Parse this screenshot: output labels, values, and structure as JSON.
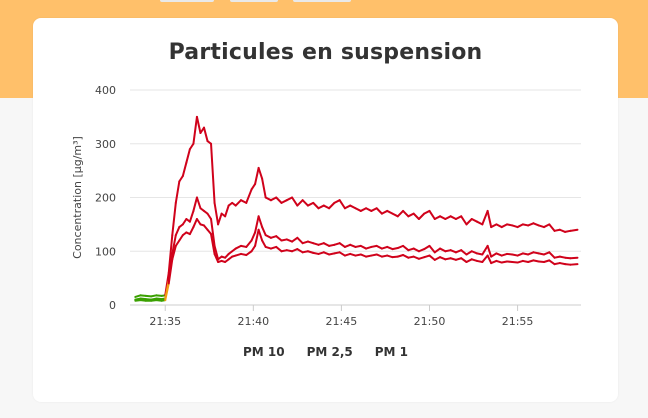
{
  "chart_data": {
    "type": "line",
    "title": "Particules en suspension",
    "ylabel": "Concentration [µg/m³]",
    "xlabel": "",
    "ylim": [
      0,
      400
    ],
    "y_ticks": [
      0,
      100,
      200,
      300,
      400
    ],
    "x_ticks": [
      {
        "t": 35,
        "label": "21:35"
      },
      {
        "t": 40,
        "label": "21:40"
      },
      {
        "t": 45,
        "label": "21:45"
      },
      {
        "t": 50,
        "label": "21:50"
      },
      {
        "t": 55,
        "label": "21:55"
      }
    ],
    "x_unit": "minutes after 21:00",
    "grid": true,
    "legend_position": "bottom",
    "colors": {
      "high": "#d0021b",
      "low_green": "#3aa000",
      "low_yellow": "#f0d000",
      "mid_orange": "#f39c12"
    },
    "series": [
      {
        "name": "PM 10",
        "points": [
          [
            33.3,
            15
          ],
          [
            33.6,
            18
          ],
          [
            33.9,
            17
          ],
          [
            34.2,
            16
          ],
          [
            34.5,
            18
          ],
          [
            34.8,
            17
          ],
          [
            35.0,
            18
          ],
          [
            35.2,
            60
          ],
          [
            35.4,
            130
          ],
          [
            35.6,
            190
          ],
          [
            35.8,
            230
          ],
          [
            36.0,
            240
          ],
          [
            36.2,
            265
          ],
          [
            36.4,
            290
          ],
          [
            36.6,
            300
          ],
          [
            36.8,
            350
          ],
          [
            37.0,
            320
          ],
          [
            37.2,
            330
          ],
          [
            37.4,
            305
          ],
          [
            37.6,
            300
          ],
          [
            37.8,
            190
          ],
          [
            38.0,
            150
          ],
          [
            38.2,
            170
          ],
          [
            38.4,
            165
          ],
          [
            38.6,
            185
          ],
          [
            38.8,
            190
          ],
          [
            39.0,
            185
          ],
          [
            39.3,
            195
          ],
          [
            39.6,
            190
          ],
          [
            39.9,
            215
          ],
          [
            40.1,
            225
          ],
          [
            40.3,
            255
          ],
          [
            40.5,
            235
          ],
          [
            40.7,
            200
          ],
          [
            41.0,
            195
          ],
          [
            41.3,
            200
          ],
          [
            41.6,
            190
          ],
          [
            41.9,
            195
          ],
          [
            42.2,
            200
          ],
          [
            42.5,
            185
          ],
          [
            42.8,
            195
          ],
          [
            43.1,
            185
          ],
          [
            43.4,
            190
          ],
          [
            43.7,
            180
          ],
          [
            44.0,
            185
          ],
          [
            44.3,
            180
          ],
          [
            44.6,
            190
          ],
          [
            44.9,
            195
          ],
          [
            45.2,
            180
          ],
          [
            45.5,
            185
          ],
          [
            45.8,
            180
          ],
          [
            46.1,
            175
          ],
          [
            46.4,
            180
          ],
          [
            46.7,
            175
          ],
          [
            47.0,
            180
          ],
          [
            47.3,
            170
          ],
          [
            47.6,
            175
          ],
          [
            47.9,
            170
          ],
          [
            48.2,
            165
          ],
          [
            48.5,
            175
          ],
          [
            48.8,
            165
          ],
          [
            49.1,
            170
          ],
          [
            49.4,
            160
          ],
          [
            49.7,
            170
          ],
          [
            50.0,
            175
          ],
          [
            50.3,
            160
          ],
          [
            50.6,
            165
          ],
          [
            50.9,
            160
          ],
          [
            51.2,
            165
          ],
          [
            51.5,
            160
          ],
          [
            51.8,
            165
          ],
          [
            52.1,
            150
          ],
          [
            52.4,
            160
          ],
          [
            52.7,
            155
          ],
          [
            53.0,
            150
          ],
          [
            53.3,
            175
          ],
          [
            53.5,
            145
          ],
          [
            53.8,
            150
          ],
          [
            54.1,
            145
          ],
          [
            54.4,
            150
          ],
          [
            54.7,
            148
          ],
          [
            55.0,
            145
          ],
          [
            55.3,
            150
          ],
          [
            55.6,
            148
          ],
          [
            55.9,
            152
          ],
          [
            56.2,
            148
          ],
          [
            56.5,
            145
          ],
          [
            56.8,
            150
          ],
          [
            57.1,
            138
          ],
          [
            57.4,
            140
          ],
          [
            57.7,
            136
          ],
          [
            58.0,
            138
          ],
          [
            58.4,
            140
          ]
        ]
      },
      {
        "name": "PM 2,5",
        "points": [
          [
            33.3,
            10
          ],
          [
            33.6,
            12
          ],
          [
            33.9,
            11
          ],
          [
            34.2,
            10
          ],
          [
            34.5,
            12
          ],
          [
            34.8,
            11
          ],
          [
            35.0,
            12
          ],
          [
            35.2,
            45
          ],
          [
            35.4,
            95
          ],
          [
            35.6,
            130
          ],
          [
            35.8,
            145
          ],
          [
            36.0,
            150
          ],
          [
            36.2,
            160
          ],
          [
            36.4,
            155
          ],
          [
            36.6,
            175
          ],
          [
            36.8,
            200
          ],
          [
            37.0,
            180
          ],
          [
            37.2,
            175
          ],
          [
            37.4,
            170
          ],
          [
            37.6,
            160
          ],
          [
            37.8,
            110
          ],
          [
            38.0,
            85
          ],
          [
            38.2,
            90
          ],
          [
            38.4,
            88
          ],
          [
            38.6,
            95
          ],
          [
            38.8,
            100
          ],
          [
            39.0,
            105
          ],
          [
            39.3,
            110
          ],
          [
            39.6,
            108
          ],
          [
            39.9,
            120
          ],
          [
            40.1,
            135
          ],
          [
            40.3,
            165
          ],
          [
            40.5,
            145
          ],
          [
            40.7,
            130
          ],
          [
            41.0,
            125
          ],
          [
            41.3,
            128
          ],
          [
            41.6,
            120
          ],
          [
            41.9,
            122
          ],
          [
            42.2,
            118
          ],
          [
            42.5,
            125
          ],
          [
            42.8,
            115
          ],
          [
            43.1,
            118
          ],
          [
            43.4,
            115
          ],
          [
            43.7,
            112
          ],
          [
            44.0,
            115
          ],
          [
            44.3,
            110
          ],
          [
            44.6,
            112
          ],
          [
            44.9,
            115
          ],
          [
            45.2,
            108
          ],
          [
            45.5,
            112
          ],
          [
            45.8,
            108
          ],
          [
            46.1,
            110
          ],
          [
            46.4,
            105
          ],
          [
            46.7,
            108
          ],
          [
            47.0,
            110
          ],
          [
            47.3,
            105
          ],
          [
            47.6,
            108
          ],
          [
            47.9,
            104
          ],
          [
            48.2,
            106
          ],
          [
            48.5,
            110
          ],
          [
            48.8,
            102
          ],
          [
            49.1,
            105
          ],
          [
            49.4,
            100
          ],
          [
            49.7,
            104
          ],
          [
            50.0,
            110
          ],
          [
            50.3,
            98
          ],
          [
            50.6,
            105
          ],
          [
            50.9,
            100
          ],
          [
            51.2,
            102
          ],
          [
            51.5,
            98
          ],
          [
            51.8,
            102
          ],
          [
            52.1,
            94
          ],
          [
            52.4,
            100
          ],
          [
            52.7,
            96
          ],
          [
            53.0,
            94
          ],
          [
            53.3,
            110
          ],
          [
            53.5,
            90
          ],
          [
            53.8,
            96
          ],
          [
            54.1,
            92
          ],
          [
            54.4,
            95
          ],
          [
            54.7,
            94
          ],
          [
            55.0,
            92
          ],
          [
            55.3,
            96
          ],
          [
            55.6,
            94
          ],
          [
            55.9,
            98
          ],
          [
            56.2,
            96
          ],
          [
            56.5,
            94
          ],
          [
            56.8,
            98
          ],
          [
            57.1,
            88
          ],
          [
            57.4,
            90
          ],
          [
            57.7,
            88
          ],
          [
            58.0,
            87
          ],
          [
            58.4,
            88
          ]
        ]
      },
      {
        "name": "PM 1",
        "points": [
          [
            33.3,
            8
          ],
          [
            33.6,
            9
          ],
          [
            33.9,
            8
          ],
          [
            34.2,
            8
          ],
          [
            34.5,
            9
          ],
          [
            34.8,
            8
          ],
          [
            35.0,
            9
          ],
          [
            35.2,
            40
          ],
          [
            35.4,
            85
          ],
          [
            35.6,
            110
          ],
          [
            35.8,
            120
          ],
          [
            36.0,
            130
          ],
          [
            36.2,
            135
          ],
          [
            36.4,
            132
          ],
          [
            36.6,
            145
          ],
          [
            36.8,
            160
          ],
          [
            37.0,
            150
          ],
          [
            37.2,
            148
          ],
          [
            37.4,
            140
          ],
          [
            37.6,
            132
          ],
          [
            37.8,
            95
          ],
          [
            38.0,
            80
          ],
          [
            38.2,
            82
          ],
          [
            38.4,
            80
          ],
          [
            38.6,
            85
          ],
          [
            38.8,
            90
          ],
          [
            39.0,
            92
          ],
          [
            39.3,
            95
          ],
          [
            39.6,
            93
          ],
          [
            39.9,
            100
          ],
          [
            40.1,
            110
          ],
          [
            40.3,
            140
          ],
          [
            40.5,
            120
          ],
          [
            40.7,
            108
          ],
          [
            41.0,
            105
          ],
          [
            41.3,
            108
          ],
          [
            41.6,
            100
          ],
          [
            41.9,
            102
          ],
          [
            42.2,
            100
          ],
          [
            42.5,
            104
          ],
          [
            42.8,
            98
          ],
          [
            43.1,
            100
          ],
          [
            43.4,
            97
          ],
          [
            43.7,
            95
          ],
          [
            44.0,
            98
          ],
          [
            44.3,
            94
          ],
          [
            44.6,
            96
          ],
          [
            44.9,
            98
          ],
          [
            45.2,
            92
          ],
          [
            45.5,
            95
          ],
          [
            45.8,
            92
          ],
          [
            46.1,
            94
          ],
          [
            46.4,
            90
          ],
          [
            46.7,
            92
          ],
          [
            47.0,
            94
          ],
          [
            47.3,
            90
          ],
          [
            47.6,
            92
          ],
          [
            47.9,
            89
          ],
          [
            48.2,
            90
          ],
          [
            48.5,
            93
          ],
          [
            48.8,
            88
          ],
          [
            49.1,
            90
          ],
          [
            49.4,
            86
          ],
          [
            49.7,
            89
          ],
          [
            50.0,
            92
          ],
          [
            50.3,
            84
          ],
          [
            50.6,
            89
          ],
          [
            50.9,
            85
          ],
          [
            51.2,
            87
          ],
          [
            51.5,
            84
          ],
          [
            51.8,
            87
          ],
          [
            52.1,
            80
          ],
          [
            52.4,
            85
          ],
          [
            52.7,
            82
          ],
          [
            53.0,
            80
          ],
          [
            53.3,
            92
          ],
          [
            53.5,
            78
          ],
          [
            53.8,
            82
          ],
          [
            54.1,
            79
          ],
          [
            54.4,
            81
          ],
          [
            54.7,
            80
          ],
          [
            55.0,
            79
          ],
          [
            55.3,
            82
          ],
          [
            55.6,
            80
          ],
          [
            55.9,
            83
          ],
          [
            56.2,
            81
          ],
          [
            56.5,
            80
          ],
          [
            56.8,
            83
          ],
          [
            57.1,
            76
          ],
          [
            57.4,
            78
          ],
          [
            57.7,
            76
          ],
          [
            58.0,
            75
          ],
          [
            58.4,
            76
          ]
        ]
      }
    ]
  }
}
